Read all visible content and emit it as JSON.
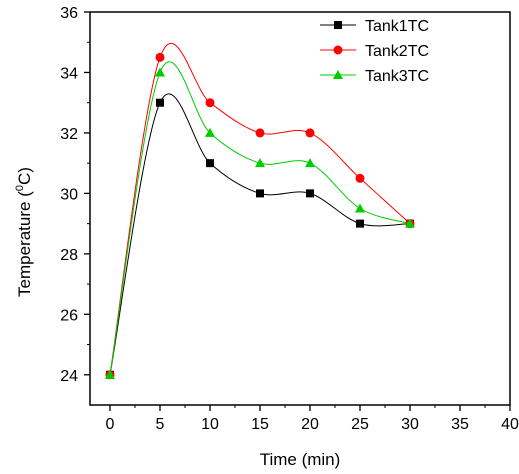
{
  "chart_data": {
    "type": "line",
    "title": "",
    "xlabel": "Time (min)",
    "ylabel_main": "Temperature (",
    "ylabel_sup": "0",
    "ylabel_unit": "C)",
    "xlim": [
      -2,
      40
    ],
    "ylim": [
      23,
      36
    ],
    "xticks": [
      0,
      5,
      10,
      15,
      20,
      25,
      30,
      35,
      40
    ],
    "yticks": [
      24,
      26,
      28,
      30,
      32,
      34,
      36
    ],
    "grid": false,
    "legend_position": "top-right",
    "series": [
      {
        "name": "Tank1TC",
        "color": "#000000",
        "marker": "square",
        "x": [
          0,
          5,
          10,
          15,
          20,
          25,
          30
        ],
        "y": [
          24,
          33,
          31,
          30,
          30,
          29,
          29
        ]
      },
      {
        "name": "Tank2TC",
        "color": "#ff0000",
        "marker": "circle",
        "x": [
          0,
          5,
          10,
          15,
          20,
          25,
          30
        ],
        "y": [
          24,
          34.5,
          33,
          32,
          32,
          30.5,
          29
        ]
      },
      {
        "name": "Tank3TC",
        "color": "#00cc00",
        "marker": "triangle",
        "x": [
          0,
          5,
          10,
          15,
          20,
          25,
          30
        ],
        "y": [
          24,
          34,
          32,
          31,
          31,
          29.5,
          29
        ]
      }
    ]
  }
}
